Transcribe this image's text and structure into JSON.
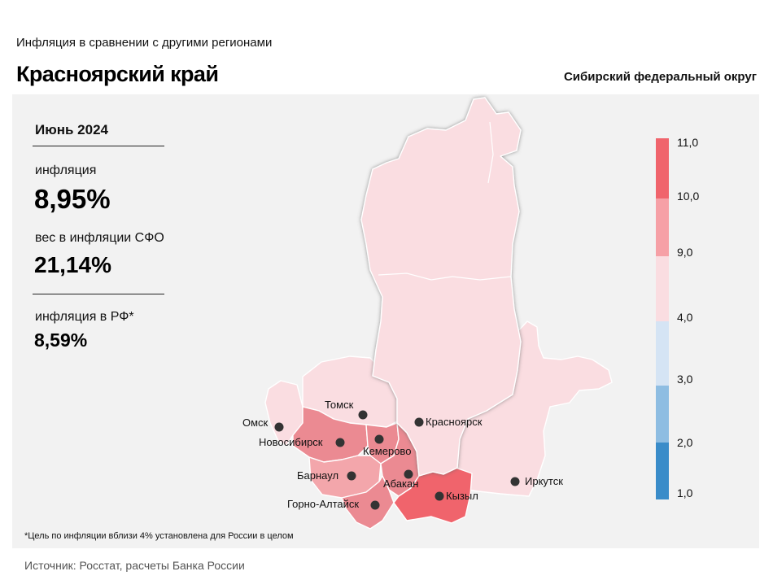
{
  "header": {
    "subtitle": "Инфляция  в сравнении  с другими  регионами",
    "region_title": "Красноярский край",
    "district": "Сибирский федеральный округ"
  },
  "stats": {
    "period": "Июнь 2024",
    "inflation_label": "инфляция",
    "inflation_value": "8,95%",
    "weight_label": "вес в инфляции  СФО",
    "weight_value": "21,14%",
    "rf_label": "инфляция  в РФ*",
    "rf_value": "8,59%"
  },
  "cities": [
    {
      "name": "Омск"
    },
    {
      "name": "Томск"
    },
    {
      "name": "Новосибирск"
    },
    {
      "name": "Кемерово"
    },
    {
      "name": "Красноярск"
    },
    {
      "name": "Барнаул"
    },
    {
      "name": "Абакан"
    },
    {
      "name": "Горно-Алтайск"
    },
    {
      "name": "Кызыл"
    },
    {
      "name": "Иркутск"
    }
  ],
  "legend": {
    "ticks": [
      "11,0",
      "10,0",
      "9,0",
      "4,0",
      "3,0",
      "2,0",
      "1,0"
    ],
    "bins": [
      {
        "from": 10.0,
        "to": 11.0,
        "color": "#f0646c"
      },
      {
        "from": 9.0,
        "to": 10.0,
        "color": "#f6a0a6"
      },
      {
        "from": 4.0,
        "to": 9.0,
        "color": "#fadde1"
      },
      {
        "from": 3.0,
        "to": 4.0,
        "color": "#d5e4f4"
      },
      {
        "from": 2.0,
        "to": 3.0,
        "color": "#8ebde2"
      },
      {
        "from": 1.0,
        "to": 2.0,
        "color": "#3a8cc9"
      }
    ]
  },
  "colors": {
    "light_pink": "#fadde1",
    "medium_pink": "#f3a6ab",
    "dark_pink": "#eb8a92",
    "red": "#f0646c",
    "panel": "#f2f2f2"
  },
  "footnote": "*Цель по инфляции вблизи 4% установлена для России в целом",
  "source": "Источник: Росстат, расчеты Банка России"
}
